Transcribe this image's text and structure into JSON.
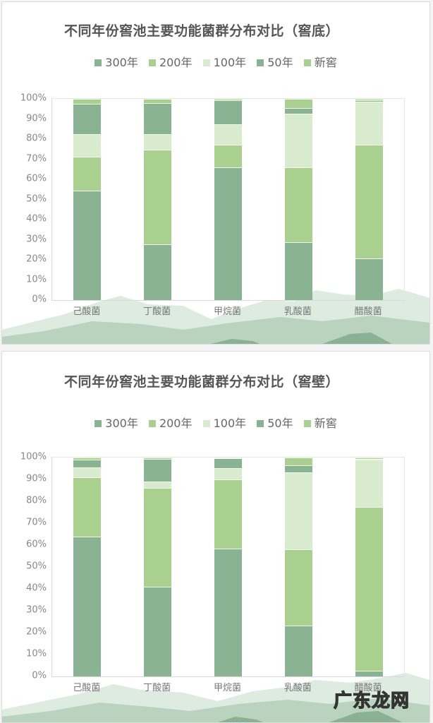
{
  "colors": {
    "s300": "#8AB394",
    "s200": "#A9D08E",
    "s100": "#D8EBCF",
    "s50": "#8AB394",
    "new": "#A9D08E"
  },
  "watermark": "广东龙网",
  "chart_data": [
    {
      "type": "bar",
      "stacked": true,
      "percent": true,
      "title": "不同年份窖池主要功能菌群分布对比（窖底）",
      "xlabel": "",
      "ylabel": "",
      "ylim": [
        0,
        100
      ],
      "yticks": [
        "100%",
        "90%",
        "80%",
        "70%",
        "60%",
        "50%",
        "40%",
        "30%",
        "20%",
        "10%",
        "0%"
      ],
      "legend_position": "top",
      "legend": [
        "300年",
        "200年",
        "100年",
        "50年",
        "新窖"
      ],
      "categories": [
        "己酸菌",
        "丁酸菌",
        "甲烷菌",
        "乳酸菌",
        "醋酸菌"
      ],
      "series": [
        {
          "name": "300年",
          "values": [
            54.4,
            27.7,
            65.8,
            28.9,
            20.8
          ]
        },
        {
          "name": "200年",
          "values": [
            16.7,
            47.1,
            11.3,
            37.2,
            56.4
          ]
        },
        {
          "name": "100年",
          "values": [
            11.3,
            7.6,
            10.3,
            26.4,
            21.4
          ]
        },
        {
          "name": "50年",
          "values": [
            15.3,
            15.6,
            11.8,
            3.1,
            0.8
          ]
        },
        {
          "name": "新窖",
          "values": [
            2.3,
            2.0,
            0.8,
            4.4,
            0.6
          ]
        }
      ]
    },
    {
      "type": "bar",
      "stacked": true,
      "percent": true,
      "title": "不同年份窖池主要功能菌群分布对比（窖壁）",
      "xlabel": "",
      "ylabel": "",
      "ylim": [
        0,
        100
      ],
      "yticks": [
        "100%",
        "90%",
        "80%",
        "70%",
        "60%",
        "50%",
        "40%",
        "30%",
        "20%",
        "10%",
        "0%"
      ],
      "legend_position": "top",
      "legend": [
        "300年",
        "200年",
        "100年",
        "50年",
        "新窖"
      ],
      "categories": [
        "己酸菌",
        "丁酸菌",
        "甲烷菌",
        "乳酸菌",
        "醋酸菌"
      ],
      "series": [
        {
          "name": "300年",
          "values": [
            63.9,
            40.9,
            58.3,
            23.3,
            2.7
          ]
        },
        {
          "name": "200年",
          "values": [
            27.2,
            45.1,
            31.7,
            34.9,
            74.7
          ]
        },
        {
          "name": "100年",
          "values": [
            4.5,
            3.2,
            5.2,
            34.9,
            21.5
          ]
        },
        {
          "name": "50年",
          "values": [
            3.3,
            10.3,
            4.5,
            3.5,
            0.6
          ]
        },
        {
          "name": "新窖",
          "values": [
            1.1,
            0.5,
            0.3,
            3.4,
            0.5
          ]
        }
      ]
    }
  ]
}
